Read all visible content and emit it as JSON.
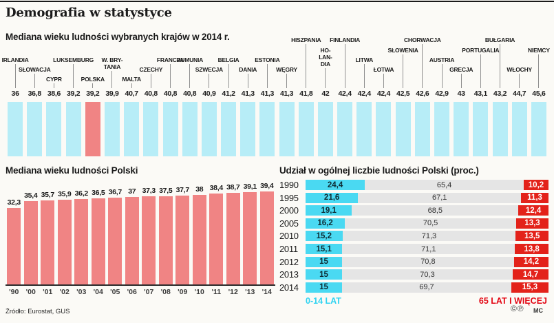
{
  "header": {
    "title": "Demografia w statystyce"
  },
  "footer": {
    "source": "Źródło: Eurostat, GUS",
    "license_icons": "©℗",
    "credit": "MC"
  },
  "colors": {
    "background": "#fbfaf6",
    "bar_cyan_light": "#b7edf7",
    "bar_salmon": "#f08484",
    "bar_cyan": "#4ad9f2",
    "bar_gray": "#e5e5e5",
    "bar_red": "#e3221a",
    "legend_cyan_text": "#2fd3f1",
    "legend_red_text": "#e30613",
    "leader_line": "#8f8f8f",
    "text_dark": "#1a1a1a"
  },
  "chart_data": [
    {
      "type": "bar",
      "title": "Mediana wieku ludności wybranych krajów w 2014 r.",
      "categories": [
        "IRLANDIA",
        "SŁOWACJA",
        "CYPR",
        "LUKSEMBURG",
        "POLSKA",
        "W. BRY-\nTANIA",
        "MALTA",
        "CZECHY",
        "FRANCJA",
        "RUMUNIA",
        "SZWECJA",
        "BELGIA",
        "DANIA",
        "ESTONIA",
        "WĘGRY",
        "HISZPANIA",
        "HO-\nLAN-\nDIA",
        "FINLANDIA",
        "LITWA",
        "ŁOTWA",
        "SŁOWENIA",
        "CHORWACJA",
        "AUSTRIA",
        "GRECJA",
        "PORTUGALIA",
        "BUŁGARIA",
        "WŁOCHY",
        "NIEMCY"
      ],
      "values": [
        "36",
        "36,8",
        "38,6",
        "39,2",
        "39,2",
        "39,9",
        "40,7",
        "40,8",
        "40,8",
        "40,8",
        "40,9",
        "41,2",
        "41,3",
        "41,3",
        "41,3",
        "41,8",
        "42",
        "42,4",
        "42,4",
        "42,4",
        "42,5",
        "42,6",
        "42,9",
        "43",
        "43,1",
        "43,2",
        "44,7",
        "45,6"
      ],
      "label_tiers": [
        2,
        3,
        4,
        2,
        4,
        2,
        4,
        3,
        2,
        2,
        3,
        2,
        3,
        2,
        3,
        0,
        1,
        0,
        2,
        3,
        1,
        0,
        2,
        3,
        1,
        0,
        3,
        1
      ],
      "highlight_category": "POLSKA",
      "layout": "equal-height pictogram bars, values printed above bars, staggered country labels with leader lines"
    },
    {
      "type": "bar",
      "title": "Mediana wieku ludności Polski",
      "categories": [
        "'90",
        "'00",
        "'01",
        "'02",
        "'03",
        "'04",
        "'05",
        "'06",
        "'07",
        "'08",
        "'09",
        "'10",
        "'11",
        "'12",
        "'13",
        "'14"
      ],
      "values": [
        "32,3",
        "35,4",
        "35,7",
        "35,9",
        "36,2",
        "36,5",
        "36,7",
        "37",
        "37,3",
        "37,5",
        "37,7",
        "38",
        "38,4",
        "38,7",
        "39,1",
        "39,4"
      ],
      "ylim": [
        0,
        39.4
      ]
    },
    {
      "type": "stacked-bar-horizontal",
      "title": "Udział w ogólnej liczbie ludności Polski (proc.)",
      "categories": [
        "1990",
        "1995",
        "2000",
        "2005",
        "2010",
        "2011",
        "2012",
        "2013",
        "2014"
      ],
      "series": [
        {
          "name": "0-14 LAT",
          "values": [
            "24,4",
            "21,6",
            "19,1",
            "16,2",
            "15,2",
            "15,1",
            "15",
            "15",
            "15"
          ]
        },
        {
          "name": "",
          "values": [
            "65,4",
            "67,1",
            "68,5",
            "70,5",
            "71,3",
            "71,1",
            "70,8",
            "70,3",
            "69,7"
          ]
        },
        {
          "name": "65 LAT I WIĘCEJ",
          "values": [
            "10,2",
            "11,3",
            "12,4",
            "13,3",
            "13,5",
            "13,8",
            "14,2",
            "14,7",
            "15,3"
          ]
        }
      ],
      "legend": {
        "left": "0-14 LAT",
        "right": "65 LAT I WIĘCEJ"
      },
      "xlim": [
        0,
        100
      ]
    }
  ]
}
